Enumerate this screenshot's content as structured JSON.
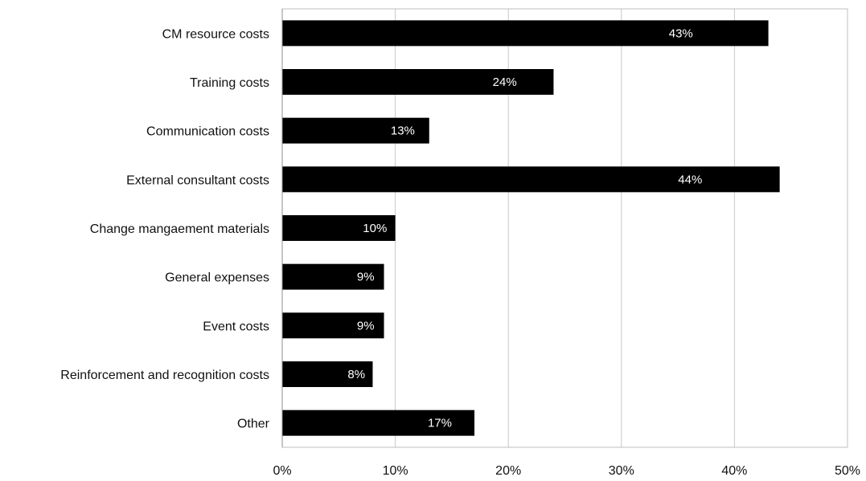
{
  "chart_data": {
    "type": "bar",
    "orientation": "horizontal",
    "categories": [
      "CM resource costs",
      "Training costs",
      "Communication costs",
      "External consultant costs",
      "Change mangaement materials",
      "General expenses",
      "Event costs",
      "Reinforcement and recognition costs",
      "Other"
    ],
    "values": [
      43,
      24,
      13,
      44,
      10,
      9,
      9,
      8,
      17
    ],
    "data_labels": [
      "43%",
      "24%",
      "13%",
      "44%",
      "10%",
      "9%",
      "9%",
      "8%",
      "17%"
    ],
    "x_ticks": [
      "0%",
      "10%",
      "20%",
      "30%",
      "40%",
      "50%"
    ],
    "xlim": [
      0,
      50
    ],
    "title": "",
    "xlabel": "",
    "ylabel": "",
    "grid": true,
    "legend": "none",
    "bar_color": "#000000",
    "data_label_color": "#ffffff"
  }
}
